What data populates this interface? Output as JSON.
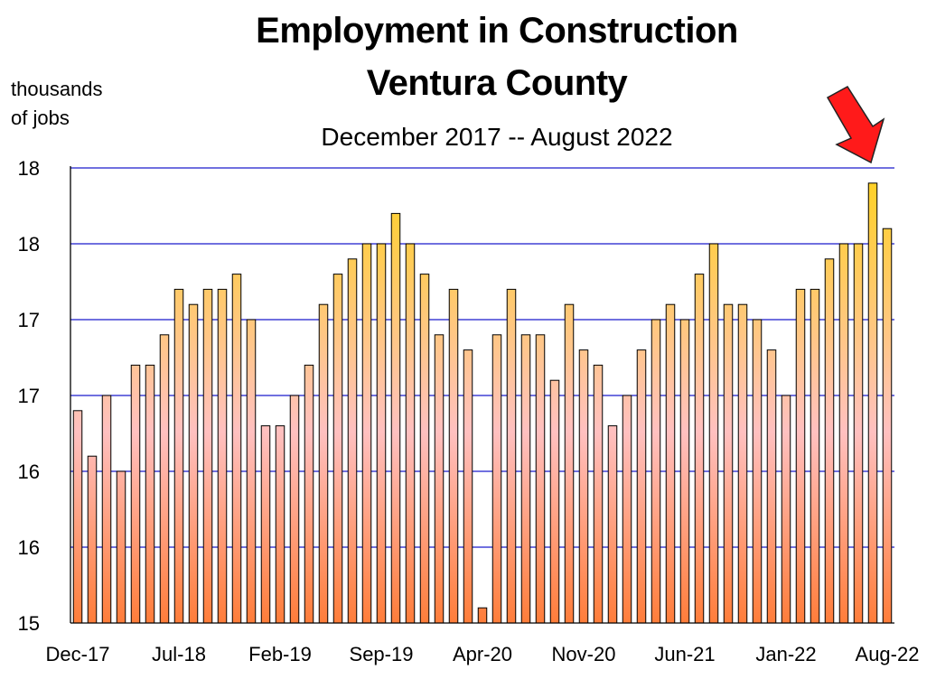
{
  "chart_data": {
    "type": "bar",
    "title_lines": [
      "Employment in Construction",
      "Ventura County"
    ],
    "subtitle": "December 2017 -- August 2022",
    "ylabel_lines": [
      "thousands",
      "of jobs"
    ],
    "xlabel": "",
    "ylim": [
      15.0,
      18.0
    ],
    "y_ticks": [
      15.0,
      15.5,
      16.0,
      16.5,
      17.0,
      17.5,
      18.0
    ],
    "y_tick_labels": [
      "15",
      "16",
      "16",
      "17",
      "17",
      "18",
      "18"
    ],
    "grid": true,
    "x_tick_labels": [
      {
        "index": 0,
        "label": "Dec-17"
      },
      {
        "index": 7,
        "label": "Jul-18"
      },
      {
        "index": 14,
        "label": "Feb-19"
      },
      {
        "index": 21,
        "label": "Sep-19"
      },
      {
        "index": 28,
        "label": "Apr-20"
      },
      {
        "index": 35,
        "label": "Nov-20"
      },
      {
        "index": 42,
        "label": "Jun-21"
      },
      {
        "index": 49,
        "label": "Jan-22"
      },
      {
        "index": 56,
        "label": "Aug-22"
      }
    ],
    "annotation": {
      "type": "arrow",
      "points_to_index": 56,
      "color": "#ff1a1a"
    },
    "colors": {
      "bar_top": "#ffd21e",
      "bar_mid": "#ffc0c0",
      "bar_bottom": "#ff7d3a",
      "grid": "#1a1acc"
    },
    "categories": [
      "Dec-17",
      "Jan-18",
      "Feb-18",
      "Mar-18",
      "Apr-18",
      "May-18",
      "Jun-18",
      "Jul-18",
      "Aug-18",
      "Sep-18",
      "Oct-18",
      "Nov-18",
      "Dec-18",
      "Jan-19",
      "Feb-19",
      "Mar-19",
      "Apr-19",
      "May-19",
      "Jun-19",
      "Jul-19",
      "Aug-19",
      "Sep-19",
      "Oct-19",
      "Nov-19",
      "Dec-19",
      "Jan-20",
      "Feb-20",
      "Mar-20",
      "Apr-20",
      "May-20",
      "Jun-20",
      "Jul-20",
      "Aug-20",
      "Sep-20",
      "Oct-20",
      "Nov-20",
      "Dec-20",
      "Jan-21",
      "Feb-21",
      "Mar-21",
      "Apr-21",
      "May-21",
      "Jun-21",
      "Jul-21",
      "Aug-21",
      "Sep-21",
      "Oct-21",
      "Nov-21",
      "Dec-21",
      "Jan-22",
      "Feb-22",
      "Mar-22",
      "Apr-22",
      "May-22",
      "Jun-22",
      "Jul-22",
      "Aug-22"
    ],
    "values": [
      16.4,
      16.1,
      16.5,
      16.0,
      16.7,
      16.7,
      16.9,
      17.2,
      17.1,
      17.2,
      17.2,
      17.3,
      17.0,
      16.3,
      16.3,
      16.5,
      16.7,
      17.1,
      17.3,
      17.4,
      17.5,
      17.5,
      17.7,
      17.5,
      17.3,
      16.9,
      17.2,
      16.8,
      15.1,
      16.9,
      17.2,
      16.9,
      16.9,
      16.6,
      17.1,
      16.8,
      16.7,
      16.3,
      16.5,
      16.8,
      17.0,
      17.1,
      17.0,
      17.3,
      17.5,
      17.1,
      17.1,
      17.0,
      16.8,
      16.5,
      17.2,
      17.2,
      17.4,
      17.5,
      17.5,
      17.9,
      17.6
    ]
  }
}
